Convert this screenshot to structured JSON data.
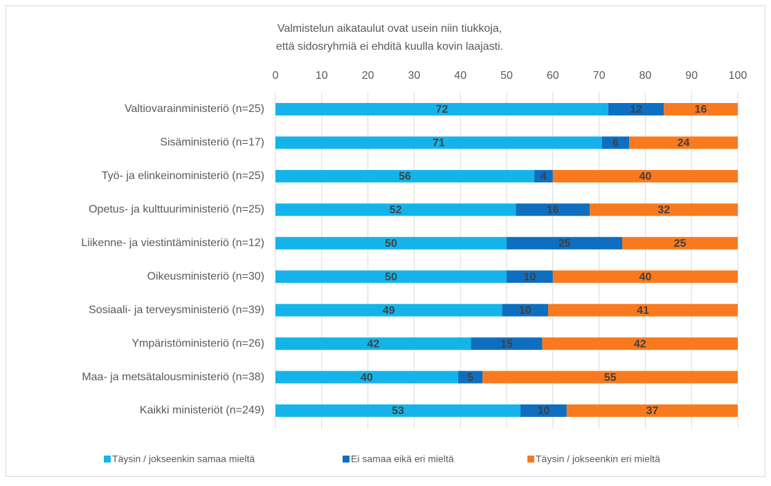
{
  "chart_data": {
    "type": "stacked_bar_horizontal",
    "title": [
      "Valmistelun aikataulut ovat usein niin tiukkoja,",
      "että sidosryhmiä ei ehditä kuulla kovin laajasti."
    ],
    "categories": [
      "Valtiovarainministeriö (n=25)",
      "Sisäministeriö (n=17)",
      "Työ- ja elinkeinoministeriö (n=25)",
      "Opetus- ja kulttuuriministeriö (n=25)",
      "Liikenne- ja viestintäministeriö (n=12)",
      "Oikeusministeriö (n=30)",
      "Sosiaali- ja terveysministeriö (n=39)",
      "Ympäristöministeriö (n=26)",
      "Maa- ja metsätalousministeriö (n=38)",
      "Kaikki ministeriöt (n=249)"
    ],
    "series": [
      {
        "name": "Täysin / jokseenkin samaa mieltä",
        "color": "#14b4ea",
        "values": [
          72,
          70.6,
          56,
          52,
          50,
          50,
          49,
          42.3,
          39.5,
          53
        ],
        "value_labels": [
          "72",
          "71",
          "56",
          "52",
          "50",
          "50",
          "49",
          "42",
          "40",
          "53"
        ]
      },
      {
        "name": "Ei samaa eikä eri mieltä",
        "color": "#0e6fc0",
        "values": [
          12,
          5.9,
          4,
          16,
          25,
          10,
          10,
          15.4,
          5.3,
          10
        ],
        "value_labels": [
          "12",
          "6",
          "4",
          "16",
          "25",
          "10",
          "10",
          "15",
          "5",
          "10"
        ]
      },
      {
        "name": "Täysin / jokseenkin eri mieltä",
        "color": "#f97a1e",
        "values": [
          16,
          23.5,
          40,
          32,
          25,
          40,
          41,
          42.3,
          55.2,
          37
        ],
        "value_labels": [
          "16",
          "24",
          "40",
          "32",
          "25",
          "40",
          "41",
          "42",
          "55",
          "37"
        ]
      }
    ],
    "xlim": [
      0,
      100
    ],
    "xticks": [
      0,
      10,
      20,
      30,
      40,
      50,
      60,
      70,
      80,
      90,
      100
    ],
    "grid": true,
    "legend": "bottom"
  }
}
